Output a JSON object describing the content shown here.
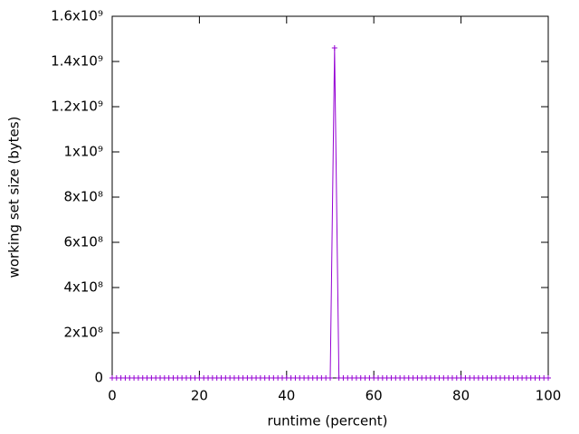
{
  "chart_data": {
    "type": "line",
    "xlabel": "runtime (percent)",
    "ylabel": "working set size (bytes)",
    "x": [
      0,
      1,
      2,
      3,
      4,
      5,
      6,
      7,
      8,
      9,
      10,
      11,
      12,
      13,
      14,
      15,
      16,
      17,
      18,
      19,
      20,
      21,
      22,
      23,
      24,
      25,
      26,
      27,
      28,
      29,
      30,
      31,
      32,
      33,
      34,
      35,
      36,
      37,
      38,
      39,
      40,
      41,
      42,
      43,
      44,
      45,
      46,
      47,
      48,
      49,
      50,
      51,
      52,
      53,
      54,
      55,
      56,
      57,
      58,
      59,
      60,
      61,
      62,
      63,
      64,
      65,
      66,
      67,
      68,
      69,
      70,
      71,
      72,
      73,
      74,
      75,
      76,
      77,
      78,
      79,
      80,
      81,
      82,
      83,
      84,
      85,
      86,
      87,
      88,
      89,
      90,
      91,
      92,
      93,
      94,
      95,
      96,
      97,
      98,
      99,
      100
    ],
    "series": [
      {
        "color": "#9400d3",
        "values": [
          0,
          0,
          0,
          0,
          0,
          0,
          0,
          0,
          0,
          0,
          0,
          0,
          0,
          0,
          0,
          0,
          0,
          0,
          0,
          0,
          0,
          0,
          0,
          0,
          0,
          0,
          0,
          0,
          0,
          0,
          0,
          0,
          0,
          0,
          0,
          0,
          0,
          0,
          0,
          0,
          0,
          0,
          0,
          0,
          0,
          0,
          0,
          0,
          0,
          0,
          0,
          1460000000,
          0,
          0,
          0,
          0,
          0,
          0,
          0,
          0,
          0,
          0,
          0,
          0,
          0,
          0,
          0,
          0,
          0,
          0,
          0,
          0,
          0,
          0,
          0,
          0,
          0,
          0,
          0,
          0,
          0,
          0,
          0,
          0,
          0,
          0,
          0,
          0,
          0,
          0,
          0,
          0,
          0,
          0,
          0,
          0,
          0,
          0,
          0,
          0,
          0
        ]
      }
    ],
    "xlim": [
      0,
      100
    ],
    "xticks": [
      0,
      20,
      40,
      60,
      80,
      100
    ],
    "ylim": [
      0,
      1600000000
    ],
    "yticks": [
      0,
      {
        "value": 200000000,
        "label": "2x10⁸"
      },
      {
        "value": 400000000,
        "label": "4x10⁸"
      },
      {
        "value": 600000000,
        "label": "6x10⁸"
      },
      {
        "value": 800000000,
        "label": "8x10⁸"
      },
      {
        "value": 1000000000,
        "label": "1x10⁹"
      },
      {
        "value": 1200000000,
        "label": "1.2x10⁹"
      },
      {
        "value": 1400000000,
        "label": "1.4x10⁹"
      },
      {
        "value": 1600000000,
        "label": "1.6x10⁹"
      }
    ],
    "grid": false
  }
}
